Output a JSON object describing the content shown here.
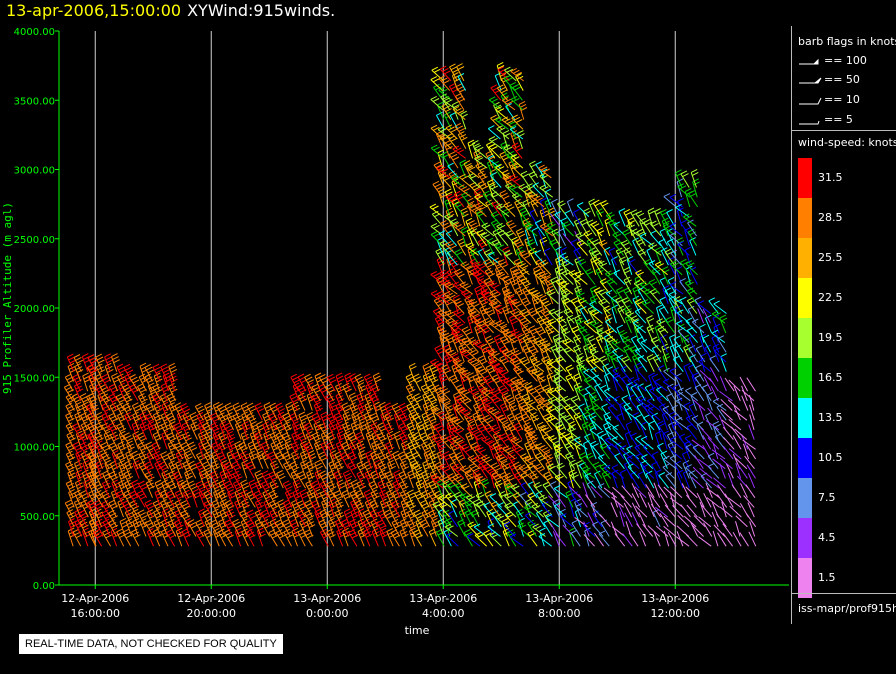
{
  "header": {
    "date_text": "13-apr-2006,15:00:00",
    "title_text": "XYWind:915winds."
  },
  "legend": {
    "flags_title": "barb flags in knots",
    "flags": [
      {
        "label": "== 100",
        "knots": 100
      },
      {
        "label": "== 50",
        "knots": 50
      },
      {
        "label": "== 10",
        "knots": 10
      },
      {
        "label": "== 5",
        "knots": 5
      }
    ],
    "speed_title": "wind-speed: knots",
    "speed_scale": [
      {
        "label": "31.5",
        "color": "#ff0000"
      },
      {
        "label": "28.5",
        "color": "#ff8000"
      },
      {
        "label": "25.5",
        "color": "#ffb000"
      },
      {
        "label": "22.5",
        "color": "#ffff00"
      },
      {
        "label": "19.5",
        "color": "#a8ff30"
      },
      {
        "label": "16.5",
        "color": "#00d000"
      },
      {
        "label": "13.5",
        "color": "#00ffff"
      },
      {
        "label": "10.5",
        "color": "#0000ff"
      },
      {
        "label": "7.5",
        "color": "#6495ed"
      },
      {
        "label": "4.5",
        "color": "#9b30ff"
      },
      {
        "label": "1.5",
        "color": "#ee82ee"
      }
    ],
    "source_text": "iss-mapr/prof915h"
  },
  "notice_text": "REAL-TIME DATA, NOT CHECKED FOR QUALITY",
  "colors": {
    "axis": "#00ff00",
    "background": "#000000",
    "text": "#ffffff",
    "gridline": "#d0d0d0"
  },
  "chart_data": {
    "type": "scatter",
    "mark": "wind-barb",
    "ylabel": "915 Profiler Altitude (m agl)",
    "xlabel": "time",
    "ylim": [
      0,
      4000
    ],
    "yticks": [
      "0.00",
      "500.00",
      "1000.00",
      "1500.00",
      "2000.00",
      "2500.00",
      "3000.00",
      "3500.00",
      "4000.00"
    ],
    "xlim_hours": [
      14.75,
      29.75
    ],
    "xticks": [
      {
        "hour": 16,
        "date": "12-Apr-2006",
        "time": "16:00:00"
      },
      {
        "hour": 20,
        "date": "12-Apr-2006",
        "time": "20:00:00"
      },
      {
        "hour": 24,
        "date": "13-Apr-2006",
        "time": "0:00:00"
      },
      {
        "hour": 28,
        "date": "13-Apr-2006",
        "time": "4:00:00"
      },
      {
        "hour": 32,
        "date": "13-Apr-2006",
        "time": "8:00:00"
      },
      {
        "hour": 36,
        "date": "13-Apr-2006",
        "time": "12:00:00"
      }
    ],
    "grid": "vertical",
    "series": [
      {
        "name": "12-Apr-2006 15:15",
        "top": 1600,
        "speed": 31.5
      },
      {
        "name": "12-Apr-2006 16:00",
        "top": 1550,
        "speed": 31.5
      },
      {
        "name": "12-Apr-2006 17:00",
        "top": 1500,
        "speed": 31.5
      },
      {
        "name": "12-Apr-2006 18:00",
        "top": 1500,
        "speed": 31.5
      },
      {
        "name": "12-Apr-2006 19:00",
        "top": 1250,
        "speed": 31.5
      },
      {
        "name": "12-Apr-2006 20:00",
        "top": 1200,
        "speed": 31.5
      },
      {
        "name": "12-Apr-2006 21:00",
        "top": 1200,
        "speed": 31.5
      },
      {
        "name": "12-Apr-2006 22:00",
        "top": 1200,
        "speed": 31.5
      },
      {
        "name": "12-Apr-2006 23:00",
        "top": 1450,
        "speed": 31.5
      },
      {
        "name": "13-Apr-2006 0:00",
        "top": 1450,
        "speed": 31.5
      },
      {
        "name": "13-Apr-2006 1:00",
        "top": 1450,
        "speed": 31.5
      },
      {
        "name": "13-Apr-2006 2:00",
        "top": 1200,
        "speed": 31.5
      },
      {
        "name": "13-Apr-2006 3:00",
        "top": 1500,
        "speed": 28.5
      },
      {
        "name": "13-Apr-2006 4:00",
        "top": 3700,
        "speed": 31.5
      },
      {
        "name": "13-Apr-2006 5:00",
        "top": 3100,
        "speed": 31.5
      },
      {
        "name": "13-Apr-2006 6:00",
        "top": 3650,
        "speed": 31.5
      },
      {
        "name": "13-Apr-2006 7:00",
        "top": 3000,
        "speed": 28.5
      },
      {
        "name": "13-Apr-2006 8:00",
        "top": 2700,
        "speed": 22.5
      },
      {
        "name": "13-Apr-2006 9:00",
        "top": 2700,
        "speed": 16.5
      },
      {
        "name": "13-Apr-2006 10:00",
        "top": 2600,
        "speed": 13.5
      },
      {
        "name": "13-Apr-2006 11:00",
        "top": 2600,
        "speed": 13.5
      },
      {
        "name": "13-Apr-2006 12:00",
        "top": 2900,
        "speed": 10.5
      },
      {
        "name": "13-Apr-2006 13:00",
        "top": 2000,
        "speed": 7.5
      },
      {
        "name": "13-Apr-2006 14:00",
        "top": 1400,
        "speed": 4.5
      }
    ]
  }
}
